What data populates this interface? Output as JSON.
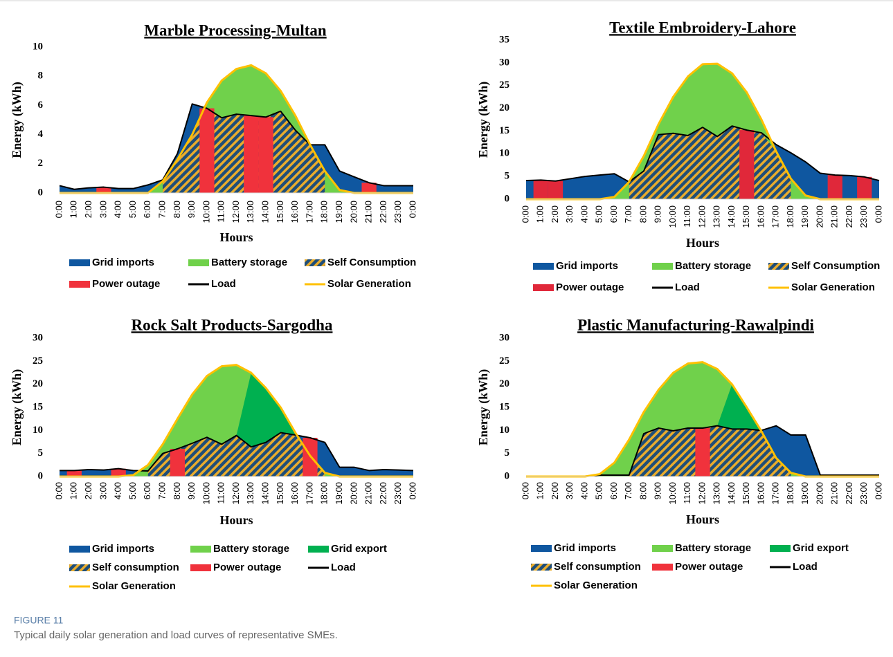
{
  "figure_label": "FIGURE 11",
  "caption": "Typical daily solar generation and load curves of representative SMEs.",
  "chart_data": [
    {
      "type": "area",
      "title": "Marble Processing-Multan",
      "x_label": "Hours",
      "y_label": "Energy (kWh)",
      "categories": [
        "0:00",
        "1:00",
        "2:00",
        "3:00",
        "4:00",
        "5:00",
        "6:00",
        "7:00",
        "8:00",
        "9:00",
        "10:00",
        "11:00",
        "12:00",
        "13:00",
        "14:00",
        "15:00",
        "16:00",
        "17:00",
        "18:00",
        "19:00",
        "20:00",
        "21:00",
        "22:00",
        "23:00",
        "0:00"
      ],
      "ylim": [
        0,
        10
      ],
      "yticks": [
        0,
        2,
        4,
        6,
        8,
        10
      ],
      "series": [
        {
          "name": "Grid imports",
          "style": "area",
          "color": "#0f57a0",
          "values": [
            0.5,
            0.25,
            0.35,
            0.4,
            0.3,
            0.3,
            0.55,
            0.9,
            2.7,
            6.1,
            5.8,
            5.15,
            5.4,
            5.3,
            5.2,
            5.6,
            4.3,
            3.3,
            3.3,
            1.5,
            1.1,
            0.7,
            0.5,
            0.5,
            0.5
          ]
        },
        {
          "name": "Battery storage",
          "style": "area",
          "color": "#70d14b",
          "values": [
            0,
            0,
            0,
            0,
            0,
            0,
            0,
            0.8,
            2.3,
            4.0,
            6.2,
            7.7,
            8.5,
            8.75,
            8.2,
            7.0,
            5.3,
            3.3,
            1.5,
            0.2,
            0,
            0,
            0,
            0,
            0
          ]
        },
        {
          "name": "Self Consumption",
          "style": "hatched-area",
          "color": "#1f4e79",
          "hatch_color": "#e9ac2c",
          "values": [
            null,
            null,
            null,
            null,
            null,
            null,
            null,
            0.8,
            2.3,
            4.0,
            5.8,
            5.15,
            5.4,
            5.3,
            5.2,
            5.6,
            4.3,
            3.3,
            1.5,
            null,
            null,
            null,
            null,
            null,
            null
          ]
        },
        {
          "name": "Power outage",
          "style": "block",
          "color": "#f0323c",
          "values": [
            null,
            null,
            null,
            0.4,
            null,
            null,
            null,
            null,
            null,
            null,
            5.8,
            null,
            null,
            5.3,
            5.2,
            null,
            null,
            null,
            null,
            null,
            null,
            0.7,
            null,
            null,
            null
          ]
        },
        {
          "name": "Load",
          "style": "line",
          "color": "#000000",
          "values": [
            0.5,
            0.25,
            0.35,
            0.4,
            0.3,
            0.3,
            0.55,
            0.9,
            2.7,
            6.1,
            5.8,
            5.15,
            5.4,
            5.3,
            5.2,
            5.6,
            4.3,
            3.3,
            3.3,
            1.5,
            1.1,
            0.7,
            0.5,
            0.5,
            0.5
          ]
        },
        {
          "name": "Solar Generation",
          "style": "line",
          "color": "#ffc000",
          "values": [
            0,
            0,
            0,
            0,
            0,
            0,
            0,
            0.8,
            2.3,
            4.0,
            6.2,
            7.7,
            8.5,
            8.75,
            8.2,
            7.0,
            5.3,
            3.3,
            1.5,
            0.2,
            0,
            0,
            0,
            0,
            0
          ]
        }
      ]
    },
    {
      "type": "area",
      "title": "Textile Embroidery-Lahore",
      "x_label": "Hours",
      "y_label": "Energy (kWh)",
      "categories": [
        "0:00",
        "1:00",
        "2:00",
        "3:00",
        "4:00",
        "5:00",
        "6:00",
        "7:00",
        "8:00",
        "9:00",
        "10:00",
        "11:00",
        "12:00",
        "13:00",
        "14:00",
        "15:00",
        "16:00",
        "17:00",
        "18:00",
        "19:00",
        "20:00",
        "21:00",
        "22:00",
        "23:00",
        "0:00"
      ],
      "ylim": [
        0,
        35
      ],
      "yticks": [
        0,
        5,
        10,
        15,
        20,
        25,
        30,
        35
      ],
      "series": [
        {
          "name": "Grid imports",
          "style": "area",
          "color": "#0f57a0",
          "values": [
            4.1,
            4.2,
            4.0,
            4.5,
            5.0,
            5.3,
            5.6,
            3.8,
            6.2,
            14.2,
            14.5,
            14.0,
            15.8,
            13.8,
            16.1,
            15.2,
            14.6,
            12.0,
            10.2,
            8.2,
            5.7,
            5.3,
            5.2,
            4.9,
            4.1
          ]
        },
        {
          "name": "Battery storage",
          "style": "area",
          "color": "#70d14b",
          "values": [
            0,
            0,
            0,
            0,
            0,
            0,
            0.5,
            3.8,
            9.5,
            16.5,
            22.5,
            27.0,
            29.7,
            29.8,
            27.7,
            23.5,
            17.5,
            10.5,
            4.5,
            0.8,
            0,
            0,
            0,
            0,
            0
          ]
        },
        {
          "name": "Self Consumption",
          "style": "hatched-area",
          "color": "#1f4e79",
          "hatch_color": "#e9ac2c",
          "values": [
            null,
            null,
            null,
            null,
            null,
            null,
            null,
            3.8,
            6.2,
            14.2,
            14.5,
            14.0,
            15.8,
            13.8,
            16.1,
            15.2,
            14.6,
            10.5,
            4.5,
            null,
            null,
            null,
            null,
            null,
            null
          ]
        },
        {
          "name": "Power outage",
          "style": "block",
          "color": "#e0283a",
          "values": [
            null,
            4.2,
            4.0,
            null,
            null,
            null,
            null,
            null,
            null,
            null,
            null,
            null,
            null,
            null,
            null,
            15.2,
            null,
            null,
            null,
            null,
            null,
            5.3,
            null,
            4.9,
            null
          ]
        },
        {
          "name": "Load",
          "style": "line",
          "color": "#000000",
          "values": [
            4.1,
            4.2,
            4.0,
            4.5,
            5.0,
            5.3,
            5.6,
            3.8,
            6.2,
            14.2,
            14.5,
            14.0,
            15.8,
            13.8,
            16.1,
            15.2,
            14.6,
            12.0,
            10.2,
            8.2,
            5.7,
            5.3,
            5.2,
            4.9,
            4.1
          ]
        },
        {
          "name": "Solar Generation",
          "style": "line",
          "color": "#ffc000",
          "values": [
            0,
            0,
            0,
            0,
            0,
            0,
            0.5,
            3.8,
            9.5,
            16.5,
            22.5,
            27.0,
            29.7,
            29.8,
            27.7,
            23.5,
            17.5,
            10.5,
            4.5,
            0.8,
            0,
            0,
            0,
            0,
            0
          ]
        }
      ]
    },
    {
      "type": "area",
      "title": "Rock Salt Products-Sargodha",
      "x_label": "Hours",
      "y_label": "Energy (kWh)",
      "categories": [
        "0:00",
        "1:00",
        "2:00",
        "3:00",
        "4:00",
        "5:00",
        "6:00",
        "7:00",
        "8:00",
        "9:00",
        "10:00",
        "11:00",
        "12:00",
        "13:00",
        "14:00",
        "15:00",
        "16:00",
        "17:00",
        "18:00",
        "19:00",
        "20:00",
        "21:00",
        "22:00",
        "23:00",
        "0:00"
      ],
      "ylim": [
        0,
        30
      ],
      "yticks": [
        0,
        5,
        10,
        15,
        20,
        25,
        30
      ],
      "series": [
        {
          "name": "Grid imports",
          "style": "area",
          "color": "#0f57a0",
          "values": [
            1.3,
            1.3,
            1.5,
            1.4,
            1.7,
            1.3,
            1.2,
            5.0,
            6.0,
            7.2,
            8.5,
            7.0,
            8.9,
            6.4,
            7.4,
            9.5,
            9.0,
            8.4,
            7.4,
            2.0,
            2.0,
            1.3,
            1.5,
            1.4,
            1.3
          ]
        },
        {
          "name": "Battery storage",
          "style": "area",
          "color": "#70d14b",
          "values": [
            0,
            0,
            0,
            0,
            0,
            0.3,
            2.5,
            7.0,
            12.5,
            17.8,
            21.8,
            23.9,
            24.2,
            22.5,
            19.2,
            15.0,
            9.5,
            4.5,
            0.8,
            0,
            0,
            0,
            0,
            0,
            0
          ]
        },
        {
          "name": "Grid export",
          "style": "area",
          "color": "#00b050",
          "values": [
            null,
            null,
            null,
            null,
            null,
            null,
            null,
            null,
            null,
            null,
            null,
            null,
            8.9,
            22.5,
            19.2,
            15.0,
            9.5,
            null,
            null,
            null,
            null,
            null,
            null,
            null,
            null
          ]
        },
        {
          "name": "Self consumption",
          "style": "hatched-area",
          "color": "#1f4e79",
          "hatch_color": "#e9ac2c",
          "values": [
            null,
            null,
            null,
            null,
            null,
            null,
            1.2,
            5.0,
            6.0,
            7.2,
            8.5,
            7.0,
            8.9,
            6.4,
            7.4,
            9.5,
            9.0,
            4.5,
            0.8,
            null,
            null,
            null,
            null,
            null,
            null
          ]
        },
        {
          "name": "Power outage",
          "style": "block",
          "color": "#f0323c",
          "values": [
            null,
            1.3,
            null,
            null,
            1.7,
            null,
            null,
            null,
            6.0,
            null,
            null,
            null,
            null,
            null,
            null,
            null,
            null,
            8.4,
            null,
            null,
            null,
            null,
            null,
            null,
            null
          ]
        },
        {
          "name": "Load",
          "style": "line",
          "color": "#000000",
          "values": [
            1.3,
            1.3,
            1.5,
            1.4,
            1.7,
            1.3,
            1.2,
            5.0,
            6.0,
            7.2,
            8.5,
            7.0,
            8.9,
            6.4,
            7.4,
            9.5,
            9.0,
            8.4,
            7.4,
            2.0,
            2.0,
            1.3,
            1.5,
            1.4,
            1.3
          ]
        },
        {
          "name": "Solar Generation",
          "style": "line",
          "color": "#ffc000",
          "values": [
            0,
            0,
            0,
            0,
            0,
            0.3,
            2.5,
            7.0,
            12.5,
            17.8,
            21.8,
            23.9,
            24.2,
            22.5,
            19.2,
            15.0,
            9.5,
            4.5,
            0.8,
            0,
            0,
            0,
            0,
            0,
            0
          ]
        }
      ]
    },
    {
      "type": "area",
      "title": "Plastic Manufacturing-Rawalpindi",
      "x_label": "Hours",
      "y_label": "Energy (kWh)",
      "categories": [
        "0:00",
        "1:00",
        "2:00",
        "3:00",
        "4:00",
        "5:00",
        "6:00",
        "7:00",
        "8:00",
        "9:00",
        "10:00",
        "11:00",
        "12:00",
        "13:00",
        "14:00",
        "15:00",
        "16:00",
        "17:00",
        "18:00",
        "19:00",
        "20:00",
        "21:00",
        "22:00",
        "23:00",
        "0:00"
      ],
      "ylim": [
        0,
        30
      ],
      "yticks": [
        0,
        5,
        10,
        15,
        20,
        25,
        30
      ],
      "series": [
        {
          "name": "Grid imports",
          "style": "area",
          "color": "#0f57a0",
          "values": [
            0,
            0,
            0,
            0,
            0,
            0.3,
            0.3,
            0.3,
            9.3,
            10.5,
            9.9,
            10.5,
            10.5,
            11.0,
            10.3,
            10.3,
            10.0,
            11.0,
            9.0,
            9.0,
            0.3,
            0.3,
            0.3,
            0.3,
            0.3
          ]
        },
        {
          "name": "Battery storage",
          "style": "area",
          "color": "#70d14b",
          "values": [
            0,
            0,
            0,
            0,
            0,
            0.5,
            3.0,
            8.0,
            14.0,
            18.8,
            22.5,
            24.5,
            24.8,
            23.3,
            20.0,
            15.0,
            9.8,
            4.0,
            0.8,
            0,
            0,
            0,
            0,
            0,
            0
          ]
        },
        {
          "name": "Grid export",
          "style": "area",
          "color": "#00b050",
          "values": [
            null,
            null,
            null,
            null,
            null,
            null,
            null,
            null,
            null,
            null,
            null,
            null,
            null,
            11.0,
            20.0,
            15.0,
            9.8,
            null,
            null,
            null,
            null,
            null,
            null,
            null,
            null
          ]
        },
        {
          "name": "Self consumption",
          "style": "hatched-area",
          "color": "#1f4e79",
          "hatch_color": "#e9ac2c",
          "values": [
            null,
            null,
            null,
            null,
            null,
            null,
            null,
            0.3,
            9.3,
            10.5,
            9.9,
            10.5,
            10.5,
            11.0,
            10.3,
            10.3,
            9.8,
            4.0,
            0.8,
            null,
            null,
            null,
            null,
            null,
            null
          ]
        },
        {
          "name": "Power outage",
          "style": "block",
          "color": "#f0323c",
          "values": [
            null,
            null,
            null,
            null,
            null,
            null,
            null,
            null,
            null,
            null,
            null,
            null,
            10.5,
            null,
            null,
            null,
            null,
            null,
            null,
            null,
            null,
            null,
            null,
            null,
            null
          ]
        },
        {
          "name": "Load",
          "style": "line",
          "color": "#000000",
          "values": [
            0,
            0,
            0,
            0,
            0,
            0.3,
            0.3,
            0.3,
            9.3,
            10.5,
            9.9,
            10.5,
            10.5,
            11.0,
            10.3,
            10.3,
            10.0,
            11.0,
            9.0,
            9.0,
            0.3,
            0.3,
            0.3,
            0.3,
            0.3
          ]
        },
        {
          "name": "Solar Generation",
          "style": "line",
          "color": "#ffc000",
          "values": [
            0,
            0,
            0,
            0,
            0,
            0.5,
            3.0,
            8.0,
            14.0,
            18.8,
            22.5,
            24.5,
            24.8,
            23.3,
            20.0,
            15.0,
            9.8,
            4.0,
            0.8,
            0,
            0,
            0,
            0,
            0,
            0
          ]
        }
      ]
    }
  ]
}
